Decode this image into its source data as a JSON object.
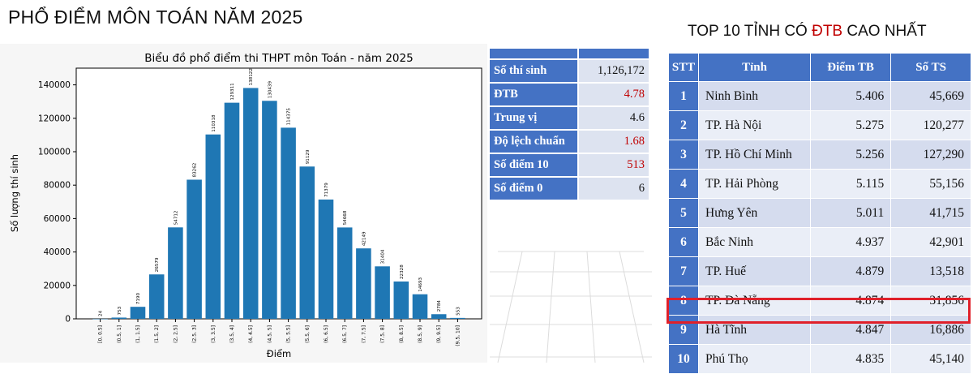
{
  "page_title": "PHỔ ĐIỂM MÔN TOÁN NĂM 2025",
  "chart_data": {
    "type": "bar",
    "title": "Biểu đồ phổ điểm thi THPT môn Toán - năm 2025",
    "xlabel": "Điểm",
    "ylabel": "Số lượng thí sinh",
    "ylim": [
      0,
      150000
    ],
    "yticks": [
      0,
      20000,
      40000,
      60000,
      80000,
      100000,
      120000,
      140000
    ],
    "grid": false,
    "categories": [
      "[0, 0.5]",
      "(0.5, 1]",
      "(1, 1.5]",
      "(1.5, 2]",
      "(2, 2.5]",
      "(2.5, 3]",
      "(3, 3.5]",
      "(3.5, 4]",
      "(4, 4.5]",
      "(4.5, 5]",
      "(5, 5.5]",
      "(5.5, 6]",
      "(6, 6.5]",
      "(6.5, 7]",
      "(7, 7.5]",
      "(7.5, 8]",
      "(8, 8.5]",
      "(8.5, 9]",
      "(9, 9.5]",
      "(9.5, 10]"
    ],
    "values": [
      24,
      753,
      7190,
      26579,
      54712,
      83262,
      110318,
      129311,
      138122,
      130439,
      114375,
      91129,
      71379,
      54668,
      42149,
      31404,
      22328,
      14693,
      2784,
      553
    ],
    "bar_color": "#1f77b4"
  },
  "stats": {
    "rows": [
      {
        "label": "Số thí sinh",
        "value": "1,126,172",
        "highlight": false
      },
      {
        "label": "ĐTB",
        "value": "4.78",
        "highlight": true
      },
      {
        "label": "Trung vị",
        "value": "4.6",
        "highlight": false
      },
      {
        "label": "Độ lệch chuẩn",
        "value": "1.68",
        "highlight": true
      },
      {
        "label": "Số điểm 10",
        "value": "513",
        "highlight": true
      },
      {
        "label": "Số điểm 0",
        "value": "6",
        "highlight": false
      }
    ]
  },
  "top10": {
    "title_prefix": "TOP 10 TỈNH CÓ ",
    "title_accent": "ĐTB",
    "title_suffix": " CAO NHẤT",
    "headers": [
      "STT",
      "Tỉnh",
      "Điểm TB",
      "Số TS"
    ],
    "rows": [
      {
        "stt": "1",
        "name": "Ninh Bình",
        "score": "5.406",
        "count": "45,669"
      },
      {
        "stt": "2",
        "name": "TP. Hà Nội",
        "score": "5.275",
        "count": "120,277"
      },
      {
        "stt": "3",
        "name": "TP. Hồ Chí Minh",
        "score": "5.256",
        "count": "127,290"
      },
      {
        "stt": "4",
        "name": "TP. Hải Phòng",
        "score": "5.115",
        "count": "55,156"
      },
      {
        "stt": "5",
        "name": "Hưng Yên",
        "score": "5.011",
        "count": "41,715"
      },
      {
        "stt": "6",
        "name": "Bắc Ninh",
        "score": "4.937",
        "count": "42,901"
      },
      {
        "stt": "7",
        "name": "TP. Huế",
        "score": "4.879",
        "count": "13,518"
      },
      {
        "stt": "8",
        "name": "TP. Đà Nẵng",
        "score": "4.874",
        "count": "31,856"
      },
      {
        "stt": "9",
        "name": "Hà Tĩnh",
        "score": "4.847",
        "count": "16,886"
      },
      {
        "stt": "10",
        "name": "Phú Thọ",
        "score": "4.835",
        "count": "45,140"
      }
    ],
    "highlighted_stt": "9",
    "accent_color": "#c00000",
    "header_color": "#4472c4",
    "highlight_border_color": "#e0202a"
  }
}
